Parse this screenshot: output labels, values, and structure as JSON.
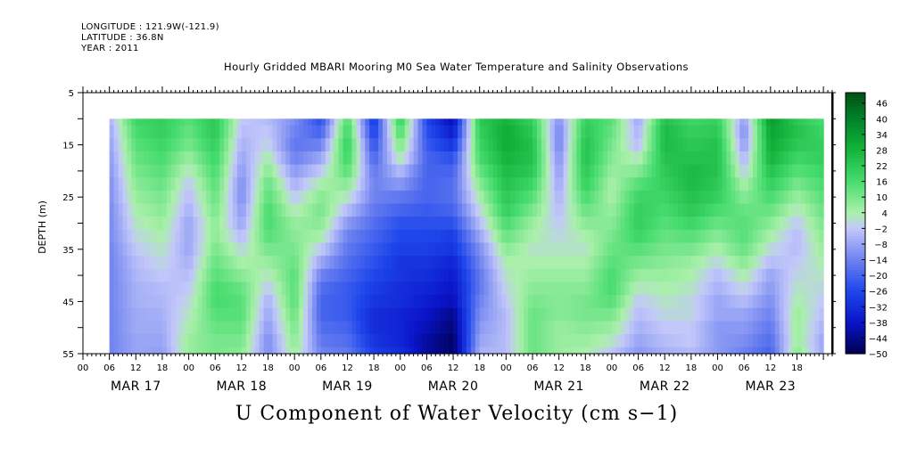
{
  "meta": {
    "longitude": "LONGITUDE : 121.9W(-121.9)",
    "latitude": "LATITUDE : 36.8N",
    "year": "YEAR : 2011"
  },
  "title": "Hourly Gridded MBARI Mooring M0 Sea Water Temperature and Salinity Observations",
  "bottom_title": "U Component of Water Velocity (cm s−1)",
  "chart_data": {
    "type": "heatmap",
    "title": "Hourly Gridded MBARI Mooring M0 Sea Water Temperature and Salinity Observations",
    "subtitle": "U Component of Water Velocity (cm s−1)",
    "xlabel": "",
    "ylabel": "DEPTH (m)",
    "x_range_hours": [
      0,
      170
    ],
    "data_start_hour": 6,
    "data_end_hour": 168,
    "y_range": [
      5,
      55
    ],
    "y_inverted": true,
    "data_depth_range": [
      10,
      55
    ],
    "y_ticks": [
      5,
      15,
      25,
      35,
      45,
      55
    ],
    "x_hour_ticks": [
      "00",
      "06",
      "12",
      "18",
      "00",
      "06",
      "12",
      "18",
      "00",
      "06",
      "12",
      "18",
      "00",
      "06",
      "12",
      "18",
      "00",
      "06",
      "12",
      "18",
      "00",
      "06",
      "12",
      "18",
      "00",
      "06",
      "12",
      "18"
    ],
    "x_date_labels": [
      "MAR 17",
      "MAR 18",
      "MAR 19",
      "MAR 20",
      "MAR 21",
      "MAR 22",
      "MAR 23"
    ],
    "colorbar": {
      "min": -50,
      "max": 50,
      "labels": [
        "46",
        "40",
        "34",
        "28",
        "22",
        "16",
        "10",
        "4",
        "−2",
        "−8",
        "−14",
        "−20",
        "−26",
        "−32",
        "−38",
        "−44",
        "−50"
      ]
    },
    "depth_rows": [
      10,
      12.5,
      15,
      17.5,
      20,
      22.5,
      25,
      27.5,
      30,
      32.5,
      35,
      37.5,
      40,
      42.5,
      45,
      47.5,
      50,
      52.5,
      55
    ],
    "profile_hours": [
      6,
      12,
      18,
      24,
      30,
      36,
      42,
      48,
      54,
      60,
      66,
      72,
      78,
      84,
      90,
      96,
      102,
      108,
      114,
      120,
      126,
      132,
      138,
      144,
      150,
      156,
      162,
      168
    ],
    "profiles": [
      [
        -6,
        -8,
        -9,
        -10,
        -11,
        -12,
        -12,
        -13,
        -13,
        -13,
        -14,
        -14,
        -14,
        -14,
        -14,
        -14,
        -14,
        -14,
        -14
      ],
      [
        18,
        16,
        14,
        12,
        10,
        8,
        6,
        4,
        2,
        0,
        -2,
        -4,
        -5,
        -6,
        -6,
        -7,
        -7,
        -8,
        -8
      ],
      [
        20,
        20,
        18,
        16,
        14,
        12,
        10,
        8,
        6,
        4,
        2,
        0,
        -2,
        -4,
        -5,
        -6,
        -7,
        -8,
        -9
      ],
      [
        14,
        12,
        10,
        6,
        2,
        -2,
        -4,
        -6,
        -8,
        -8,
        -8,
        -6,
        -4,
        -2,
        0,
        2,
        4,
        6,
        6
      ],
      [
        22,
        22,
        20,
        18,
        16,
        14,
        12,
        10,
        8,
        8,
        10,
        12,
        14,
        16,
        16,
        14,
        12,
        10,
        10
      ],
      [
        -2,
        -4,
        -6,
        -8,
        -10,
        -12,
        -12,
        -10,
        -8,
        -4,
        0,
        4,
        8,
        12,
        14,
        14,
        12,
        10,
        8
      ],
      [
        -4,
        -2,
        0,
        4,
        8,
        12,
        14,
        16,
        16,
        14,
        10,
        6,
        2,
        -2,
        -6,
        -8,
        -10,
        -12,
        -12
      ],
      [
        -12,
        -14,
        -16,
        -14,
        -10,
        -6,
        -2,
        2,
        6,
        8,
        10,
        12,
        14,
        14,
        14,
        12,
        10,
        8,
        6
      ],
      [
        -24,
        -20,
        -14,
        -8,
        -2,
        4,
        8,
        10,
        8,
        4,
        -2,
        -8,
        -14,
        -18,
        -20,
        -20,
        -18,
        -16,
        -14
      ],
      [
        16,
        18,
        20,
        18,
        14,
        8,
        2,
        -4,
        -10,
        -14,
        -16,
        -18,
        -20,
        -22,
        -22,
        -22,
        -20,
        -18,
        -16
      ],
      [
        -30,
        -28,
        -24,
        -20,
        -16,
        -14,
        -14,
        -16,
        -18,
        -20,
        -22,
        -24,
        -26,
        -28,
        -30,
        -32,
        -32,
        -30,
        -28
      ],
      [
        20,
        16,
        10,
        4,
        -4,
        -10,
        -16,
        -20,
        -24,
        -26,
        -28,
        -30,
        -30,
        -32,
        -32,
        -34,
        -34,
        -34,
        -32
      ],
      [
        -26,
        -24,
        -22,
        -20,
        -20,
        -20,
        -20,
        -22,
        -24,
        -26,
        -28,
        -30,
        -32,
        -34,
        -36,
        -38,
        -40,
        -42,
        -42
      ],
      [
        -40,
        -36,
        -30,
        -24,
        -20,
        -18,
        -18,
        -20,
        -24,
        -28,
        -30,
        -34,
        -36,
        -38,
        -40,
        -44,
        -46,
        -48,
        -48
      ],
      [
        22,
        20,
        18,
        16,
        12,
        8,
        4,
        0,
        -4,
        -8,
        -12,
        -14,
        -16,
        -16,
        -14,
        -12,
        -10,
        -8,
        -6
      ],
      [
        28,
        30,
        30,
        28,
        26,
        24,
        22,
        20,
        16,
        12,
        8,
        4,
        2,
        0,
        -2,
        -4,
        -4,
        -4,
        -4
      ],
      [
        20,
        22,
        24,
        24,
        22,
        18,
        14,
        10,
        6,
        4,
        2,
        4,
        6,
        8,
        10,
        12,
        12,
        12,
        12
      ],
      [
        -12,
        -14,
        -14,
        -12,
        -10,
        -8,
        -6,
        -4,
        -2,
        0,
        2,
        4,
        6,
        8,
        8,
        8,
        6,
        6,
        6
      ],
      [
        20,
        22,
        24,
        24,
        22,
        20,
        16,
        12,
        8,
        4,
        2,
        4,
        6,
        8,
        10,
        10,
        8,
        6,
        4
      ],
      [
        14,
        12,
        10,
        8,
        6,
        4,
        4,
        6,
        8,
        10,
        12,
        14,
        16,
        16,
        14,
        10,
        6,
        2,
        -2
      ],
      [
        -8,
        -6,
        -4,
        2,
        8,
        14,
        18,
        20,
        20,
        18,
        14,
        10,
        6,
        2,
        -2,
        -4,
        -6,
        -8,
        -10
      ],
      [
        24,
        26,
        26,
        24,
        22,
        20,
        18,
        16,
        14,
        12,
        10,
        8,
        6,
        4,
        2,
        0,
        -2,
        -4,
        -6
      ],
      [
        18,
        20,
        22,
        24,
        26,
        26,
        24,
        22,
        18,
        14,
        10,
        6,
        4,
        2,
        0,
        0,
        -2,
        -2,
        -4
      ],
      [
        20,
        22,
        24,
        24,
        24,
        22,
        20,
        16,
        12,
        8,
        4,
        0,
        -4,
        -6,
        -8,
        -8,
        -10,
        -10,
        -10
      ],
      [
        -10,
        -12,
        -10,
        -6,
        -2,
        4,
        8,
        12,
        14,
        14,
        12,
        8,
        4,
        0,
        -4,
        -8,
        -10,
        -12,
        -14
      ],
      [
        34,
        32,
        30,
        28,
        24,
        20,
        16,
        12,
        8,
        4,
        0,
        -4,
        -8,
        -10,
        -12,
        -14,
        -16,
        -18,
        -20
      ],
      [
        22,
        24,
        22,
        18,
        14,
        10,
        6,
        2,
        -2,
        -4,
        -4,
        -2,
        0,
        2,
        4,
        6,
        6,
        6,
        8
      ],
      [
        16,
        18,
        20,
        20,
        18,
        16,
        14,
        12,
        10,
        8,
        6,
        4,
        2,
        0,
        -2,
        -4,
        -6,
        -8,
        -8
      ]
    ]
  }
}
